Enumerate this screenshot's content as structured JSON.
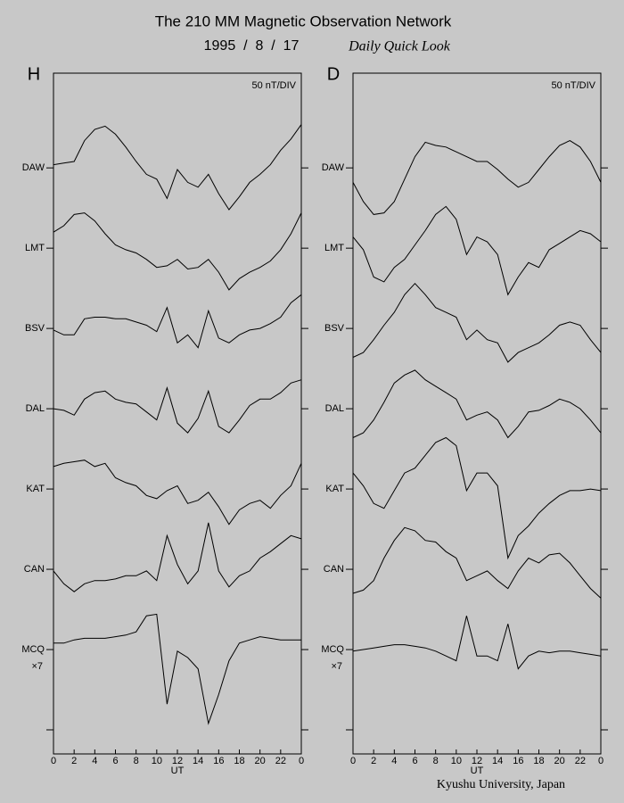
{
  "header": {
    "title": "The 210 MM Magnetic Observation Network",
    "date": "1995  /  8  /  17",
    "subtitle": "Daily Quick Look"
  },
  "footer": {
    "credit": "Kyushu University, Japan"
  },
  "chart_data": [
    {
      "type": "line",
      "title": "H",
      "annotation": "50 nT/DIV",
      "scale_label": "×7",
      "xlabel": "UT",
      "x": [
        0,
        1,
        2,
        3,
        4,
        5,
        6,
        7,
        8,
        9,
        10,
        11,
        12,
        13,
        14,
        15,
        16,
        17,
        18,
        19,
        20,
        21,
        22,
        23,
        24
      ],
      "xlim": [
        0,
        24
      ],
      "xticks": [
        0,
        2,
        4,
        6,
        8,
        10,
        12,
        14,
        16,
        18,
        20,
        22,
        {
          "value": 24,
          "label": "0"
        }
      ],
      "ylim": [
        -15,
        409
      ],
      "yticks": [
        {
          "value": 350,
          "label": "DAW"
        },
        {
          "value": 300,
          "label": "LMT"
        },
        {
          "value": 250,
          "label": "BSV"
        },
        {
          "value": 200,
          "label": "DAL"
        },
        {
          "value": 150,
          "label": "KAT"
        },
        {
          "value": 100,
          "label": "CAN"
        },
        {
          "value": 50,
          "label": "MCQ"
        },
        {
          "value": 0,
          "label": null
        }
      ],
      "series": [
        {
          "color": "#000000",
          "values": [
            352,
            353,
            354,
            367,
            374,
            376,
            371,
            363,
            354,
            346,
            343,
            331,
            349,
            341,
            338,
            346,
            334,
            324,
            332,
            341,
            346,
            352,
            361,
            368,
            377
          ]
        },
        {
          "color": "#000000",
          "values": [
            310,
            314,
            321,
            322,
            317,
            309,
            302,
            299,
            297,
            293,
            288,
            289,
            293,
            287,
            288,
            293,
            285,
            274,
            281,
            285,
            288,
            292,
            299,
            309,
            322
          ]
        },
        {
          "color": "#000000",
          "values": [
            249,
            246,
            246,
            256,
            257,
            257,
            256,
            256,
            254,
            252,
            248,
            263,
            241,
            246,
            238,
            261,
            244,
            241,
            246,
            249,
            250,
            253,
            257,
            266,
            271
          ]
        },
        {
          "color": "#000000",
          "values": [
            200,
            199,
            196,
            206,
            210,
            211,
            206,
            204,
            203,
            198,
            193,
            213,
            191,
            185,
            194,
            211,
            189,
            185,
            193,
            202,
            206,
            206,
            210,
            216,
            218
          ]
        },
        {
          "color": "#000000",
          "values": [
            164,
            166,
            167,
            168,
            164,
            166,
            157,
            154,
            152,
            146,
            144,
            149,
            152,
            141,
            143,
            148,
            139,
            128,
            137,
            141,
            143,
            138,
            146,
            152,
            166
          ]
        },
        {
          "color": "#000000",
          "values": [
            99,
            91,
            86,
            91,
            93,
            93,
            94,
            96,
            96,
            99,
            93,
            121,
            103,
            91,
            99,
            129,
            99,
            89,
            96,
            99,
            107,
            111,
            116,
            121,
            119
          ]
        },
        {
          "color": "#000000",
          "values": [
            54,
            54,
            56,
            57,
            57,
            57,
            58,
            59,
            61,
            71,
            72,
            16,
            49,
            45,
            38,
            4,
            22,
            43,
            54,
            56,
            58,
            57,
            56,
            56,
            56
          ]
        }
      ]
    },
    {
      "type": "line",
      "title": "D",
      "annotation": "50 nT/DIV",
      "scale_label": "×7",
      "xlabel": "UT",
      "x": [
        0,
        1,
        2,
        3,
        4,
        5,
        6,
        7,
        8,
        9,
        10,
        11,
        12,
        13,
        14,
        15,
        16,
        17,
        18,
        19,
        20,
        21,
        22,
        23,
        24
      ],
      "xlim": [
        0,
        24
      ],
      "xticks": [
        0,
        2,
        4,
        6,
        8,
        10,
        12,
        14,
        16,
        18,
        20,
        22,
        {
          "value": 24,
          "label": "0"
        }
      ],
      "ylim": [
        -15,
        409
      ],
      "yticks": [
        {
          "value": 350,
          "label": "DAW"
        },
        {
          "value": 300,
          "label": "LMT"
        },
        {
          "value": 250,
          "label": "BSV"
        },
        {
          "value": 200,
          "label": "DAL"
        },
        {
          "value": 150,
          "label": "KAT"
        },
        {
          "value": 100,
          "label": "CAN"
        },
        {
          "value": 50,
          "label": "MCQ"
        },
        {
          "value": 0,
          "label": null
        }
      ],
      "series": [
        {
          "color": "#000000",
          "values": [
            341,
            329,
            321,
            322,
            329,
            343,
            357,
            366,
            364,
            363,
            360,
            357,
            354,
            354,
            349,
            343,
            338,
            341,
            349,
            357,
            364,
            367,
            363,
            354,
            341
          ]
        },
        {
          "color": "#000000",
          "values": [
            307,
            299,
            282,
            279,
            288,
            293,
            302,
            311,
            321,
            326,
            318,
            296,
            307,
            304,
            296,
            271,
            282,
            291,
            288,
            299,
            303,
            307,
            311,
            309,
            304
          ]
        },
        {
          "color": "#000000",
          "values": [
            232,
            235,
            243,
            252,
            260,
            271,
            278,
            271,
            263,
            260,
            257,
            243,
            249,
            243,
            241,
            229,
            235,
            238,
            241,
            246,
            252,
            254,
            252,
            243,
            235
          ]
        },
        {
          "color": "#000000",
          "values": [
            182,
            185,
            193,
            204,
            216,
            221,
            224,
            218,
            214,
            210,
            206,
            193,
            196,
            198,
            193,
            182,
            189,
            198,
            199,
            202,
            206,
            204,
            200,
            193,
            185
          ]
        },
        {
          "color": "#000000",
          "values": [
            160,
            152,
            141,
            138,
            149,
            160,
            163,
            171,
            179,
            182,
            177,
            149,
            160,
            160,
            152,
            107,
            121,
            127,
            135,
            141,
            146,
            149,
            149,
            150,
            149
          ]
        },
        {
          "color": "#000000",
          "values": [
            85,
            87,
            93,
            107,
            118,
            126,
            124,
            118,
            117,
            111,
            107,
            93,
            96,
            99,
            93,
            88,
            99,
            107,
            104,
            109,
            110,
            104,
            96,
            88,
            82
          ]
        },
        {
          "color": "#000000",
          "values": [
            49,
            50,
            51,
            52,
            53,
            53,
            52,
            51,
            49,
            46,
            43,
            71,
            46,
            46,
            43,
            66,
            38,
            46,
            49,
            48,
            49,
            49,
            48,
            47,
            46
          ]
        }
      ]
    }
  ]
}
